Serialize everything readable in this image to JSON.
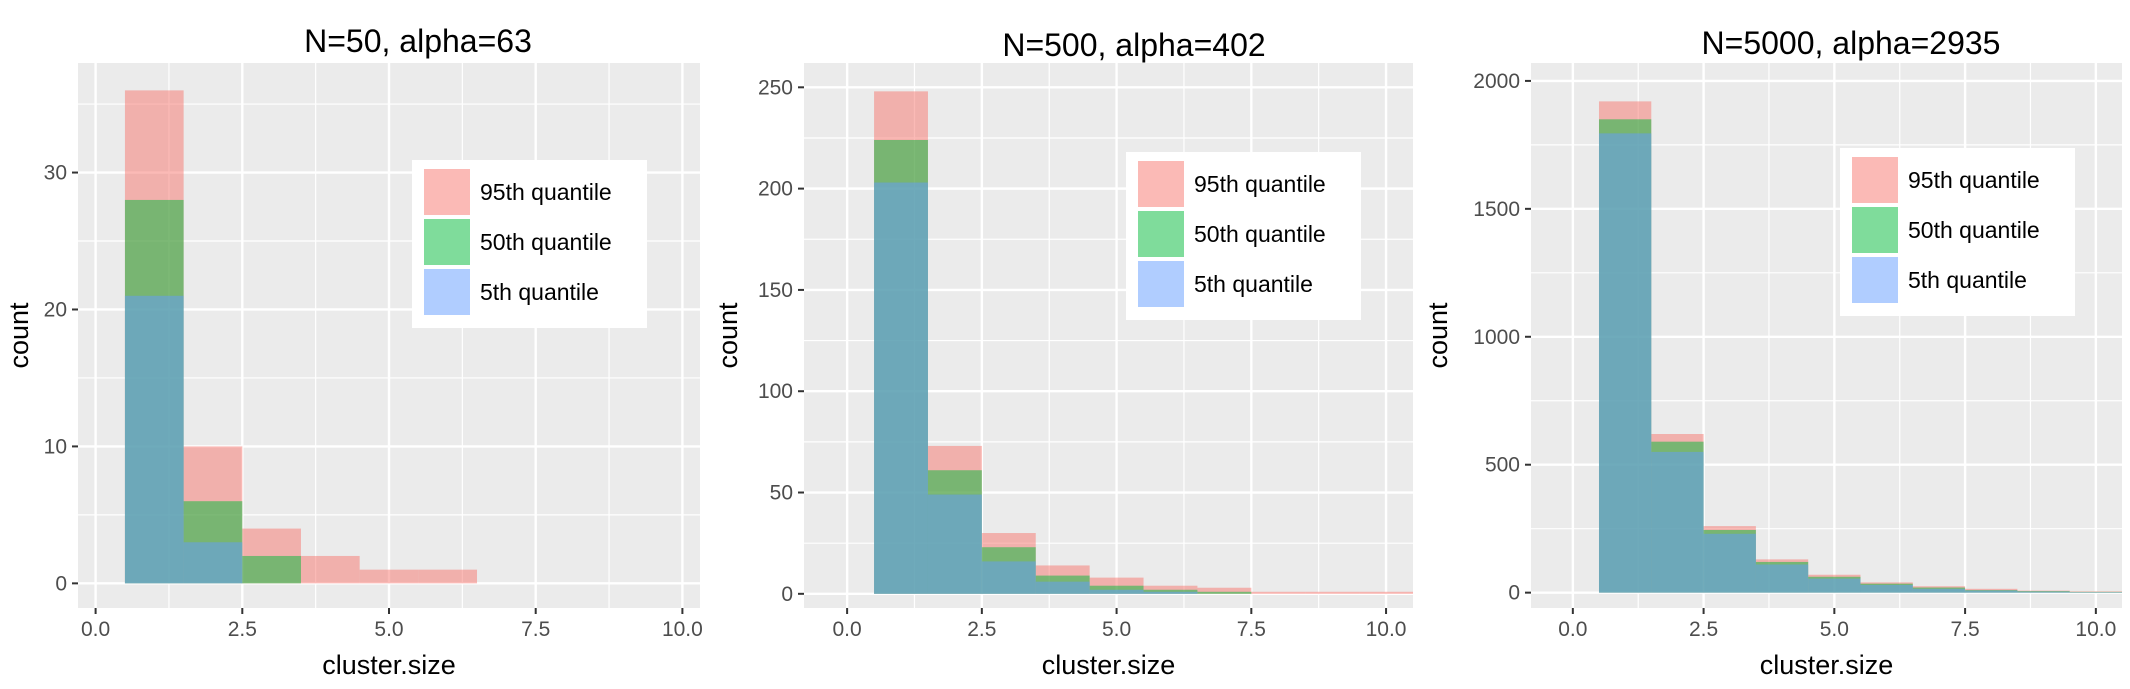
{
  "legend_items": [
    {
      "label": "95th quantile",
      "color": "#F8766D"
    },
    {
      "label": "50th quantile",
      "color": "#00BA38"
    },
    {
      "label": "5th quantile",
      "color": "#619CFF"
    }
  ],
  "chart_data": [
    {
      "type": "bar",
      "title": "N=50, alpha=63",
      "xlabel": "cluster.size",
      "ylabel": "count",
      "xlim": [
        -0.3,
        10.3
      ],
      "ylim": [
        -1.8,
        38
      ],
      "xticks": [
        0.0,
        2.5,
        5.0,
        7.5,
        10.0
      ],
      "xtick_labels": [
        "0.0",
        "2.5",
        "5.0",
        "7.5",
        "10.0"
      ],
      "yticks": [
        0,
        10,
        20,
        30
      ],
      "ytick_labels": [
        "0",
        "10",
        "20",
        "30"
      ],
      "grid": true,
      "legend_position": "top-right",
      "bin_width": 1,
      "x": [
        1,
        2,
        3,
        4,
        5,
        6
      ],
      "series": [
        {
          "name": "95th quantile",
          "color": "#F8766D",
          "values": [
            36,
            10,
            4,
            2,
            1,
            1
          ]
        },
        {
          "name": "50th quantile",
          "color": "#00BA38",
          "values": [
            28,
            6,
            2,
            0,
            0,
            0
          ]
        },
        {
          "name": "5th quantile",
          "color": "#619CFF",
          "values": [
            21,
            3,
            0,
            0,
            0,
            0
          ]
        }
      ]
    },
    {
      "type": "bar",
      "title": "N=500, alpha=402",
      "xlabel": "cluster.size",
      "ylabel": "count",
      "xlim": [
        -0.8,
        10.5
      ],
      "ylim": [
        -7,
        262
      ],
      "xticks": [
        0.0,
        2.5,
        5.0,
        7.5,
        10.0
      ],
      "xtick_labels": [
        "0.0",
        "2.5",
        "5.0",
        "7.5",
        "10.0"
      ],
      "yticks": [
        0,
        50,
        100,
        150,
        200,
        250
      ],
      "ytick_labels": [
        "0",
        "50",
        "100",
        "150",
        "200",
        "250"
      ],
      "grid": true,
      "legend_position": "top-right",
      "bin_width": 1,
      "x": [
        1,
        2,
        3,
        4,
        5,
        6,
        7,
        8,
        9,
        10
      ],
      "series": [
        {
          "name": "95th quantile",
          "color": "#F8766D",
          "values": [
            248,
            73,
            30,
            14,
            8,
            4,
            3,
            1,
            1,
            1
          ]
        },
        {
          "name": "50th quantile",
          "color": "#00BA38",
          "values": [
            224,
            61,
            23,
            9,
            4,
            2,
            1,
            0,
            0,
            0
          ]
        },
        {
          "name": "5th quantile",
          "color": "#619CFF",
          "values": [
            203,
            49,
            16,
            6,
            2,
            1,
            0,
            0,
            0,
            0
          ]
        }
      ]
    },
    {
      "type": "bar",
      "title": "N=5000, alpha=2935",
      "xlabel": "cluster.size",
      "ylabel": "count",
      "xlim": [
        -0.8,
        10.5
      ],
      "ylim": [
        -60,
        2070
      ],
      "xticks": [
        0.0,
        2.5,
        5.0,
        7.5,
        10.0
      ],
      "xtick_labels": [
        "0.0",
        "2.5",
        "5.0",
        "7.5",
        "10.0"
      ],
      "yticks": [
        0,
        500,
        1000,
        1500,
        2000
      ],
      "ytick_labels": [
        "0",
        "500",
        "1000",
        "1500",
        "2000"
      ],
      "grid": true,
      "legend_position": "top-right",
      "bin_width": 1,
      "x": [
        1,
        2,
        3,
        4,
        5,
        6,
        7,
        8,
        9,
        10
      ],
      "series": [
        {
          "name": "95th quantile",
          "color": "#F8766D",
          "values": [
            1920,
            620,
            260,
            130,
            70,
            40,
            25,
            15,
            8,
            5
          ]
        },
        {
          "name": "50th quantile",
          "color": "#00BA38",
          "values": [
            1850,
            590,
            245,
            120,
            62,
            35,
            20,
            10,
            6,
            3
          ]
        },
        {
          "name": "5th quantile",
          "color": "#619CFF",
          "values": [
            1795,
            550,
            230,
            110,
            55,
            30,
            15,
            8,
            4,
            2
          ]
        }
      ]
    }
  ]
}
